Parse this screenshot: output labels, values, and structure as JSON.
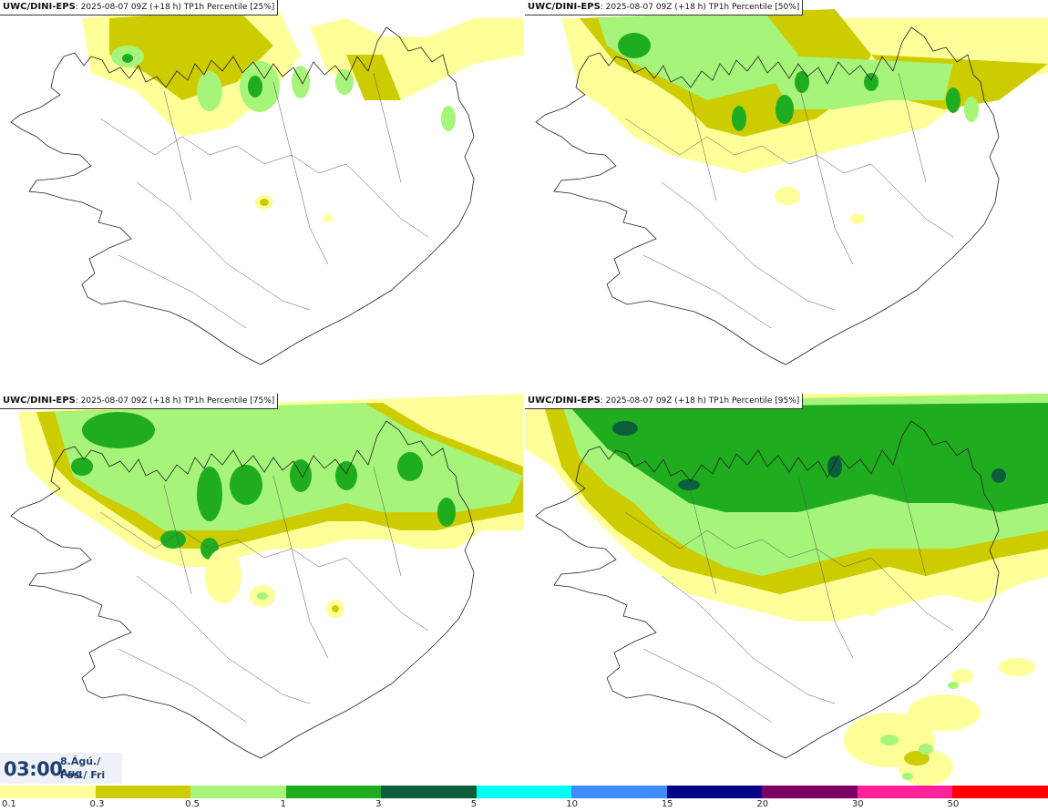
{
  "panels": [
    {
      "model": "UWC/DINI-EPS",
      "run": ": 2025-08-07 09Z (+18 h)",
      "product": "TP1h Percentile [25%]"
    },
    {
      "model": "UWC/DINI-EPS",
      "run": ": 2025-08-07 09Z (+18 h)",
      "product": "TP1h Percentile [50%]"
    },
    {
      "model": "UWC/DINI-EPS",
      "run": ": 2025-08-07 09Z (+18 h)",
      "product": "TP1h Percentile [75%]"
    },
    {
      "model": "UWC/DINI-EPS",
      "run": ": 2025-08-07 09Z (+18 h)",
      "product": "TP1h Percentile [95%]"
    }
  ],
  "valid_time": {
    "time": "03:00",
    "date": "8.Ágú./ Aug",
    "day": "Fös./ Fri"
  },
  "legend": {
    "colors": [
      "#ffff99",
      "#cccc00",
      "#a6f57a",
      "#1fad1f",
      "#0a5e3c",
      "#00ffee",
      "#3d8bff",
      "#000088",
      "#7a0066",
      "#ff2299",
      "#ff0000"
    ],
    "ticks": [
      "0.1",
      "0.3",
      "0.5",
      "1",
      "3",
      "5",
      "10",
      "15",
      "20",
      "30",
      "50"
    ]
  }
}
